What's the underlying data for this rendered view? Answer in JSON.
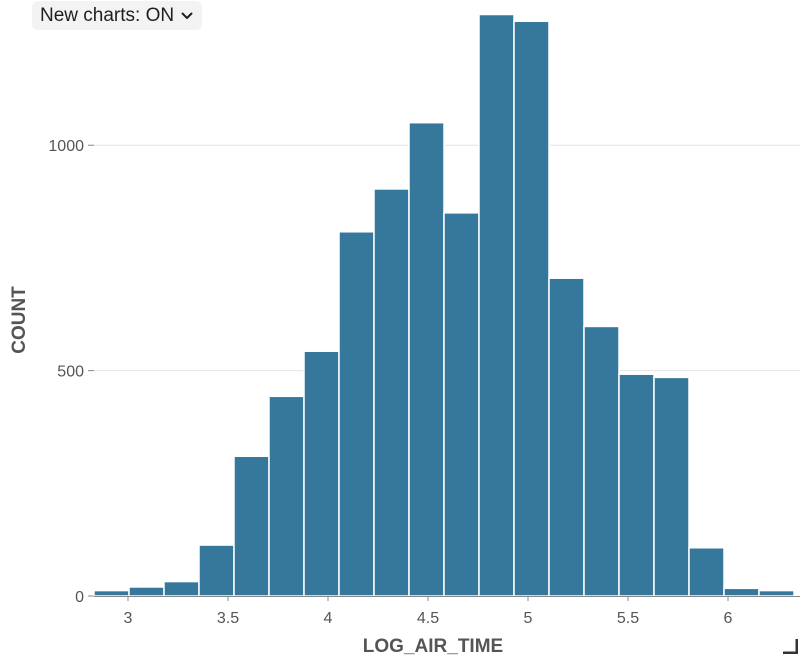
{
  "toolbar": {
    "new_charts_label": "New charts: ON",
    "dropdown_icon": "chevron-down-icon"
  },
  "colors": {
    "bar_fill": "#35789b",
    "bar_stroke": "#ffffff",
    "grid": "#e4e4e4",
    "axis": "#888888",
    "text": "#555555"
  },
  "chart_data": {
    "type": "bar",
    "xlabel": "LOG_AIR_TIME",
    "ylabel": "COUNT",
    "xlim": [
      2.83,
      6.36
    ],
    "ylim": [
      0,
      1300
    ],
    "grid": true,
    "legend": "none",
    "x_ticks": [
      3,
      3.5,
      4,
      4.5,
      5,
      5.5,
      6
    ],
    "x_tick_labels": [
      "3",
      "3.5",
      "4",
      "4.5",
      "5",
      "5.5",
      "6"
    ],
    "y_ticks": [
      0,
      500,
      1000
    ],
    "y_tick_labels": [
      "0",
      "500",
      "1000"
    ],
    "bin_width": 0.175,
    "bins": [
      {
        "x0": 2.83,
        "x1": 3.005,
        "count": 12
      },
      {
        "x0": 3.005,
        "x1": 3.18,
        "count": 20
      },
      {
        "x0": 3.18,
        "x1": 3.355,
        "count": 32
      },
      {
        "x0": 3.355,
        "x1": 3.53,
        "count": 113
      },
      {
        "x0": 3.53,
        "x1": 3.705,
        "count": 310
      },
      {
        "x0": 3.705,
        "x1": 3.88,
        "count": 443
      },
      {
        "x0": 3.88,
        "x1": 4.055,
        "count": 543
      },
      {
        "x0": 4.055,
        "x1": 4.23,
        "count": 808
      },
      {
        "x0": 4.23,
        "x1": 4.405,
        "count": 903
      },
      {
        "x0": 4.405,
        "x1": 4.58,
        "count": 1050
      },
      {
        "x0": 4.58,
        "x1": 4.755,
        "count": 850
      },
      {
        "x0": 4.755,
        "x1": 4.93,
        "count": 1290
      },
      {
        "x0": 4.93,
        "x1": 5.105,
        "count": 1275
      },
      {
        "x0": 5.105,
        "x1": 5.28,
        "count": 705
      },
      {
        "x0": 5.28,
        "x1": 5.455,
        "count": 598
      },
      {
        "x0": 5.455,
        "x1": 5.63,
        "count": 492
      },
      {
        "x0": 5.63,
        "x1": 5.805,
        "count": 485
      },
      {
        "x0": 5.805,
        "x1": 5.98,
        "count": 107
      },
      {
        "x0": 5.98,
        "x1": 6.155,
        "count": 17
      },
      {
        "x0": 6.155,
        "x1": 6.33,
        "count": 12
      }
    ]
  }
}
